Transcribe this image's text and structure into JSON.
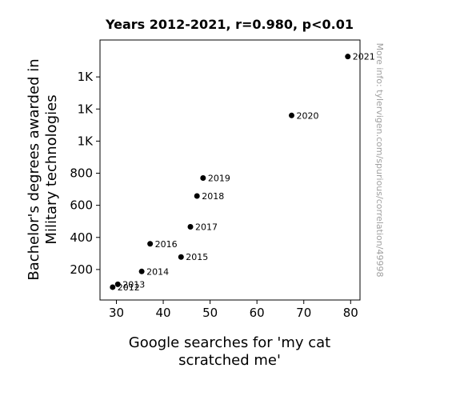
{
  "chart_data": {
    "type": "scatter",
    "title": "Years 2012-2021, r=0.980, p<0.01",
    "xlabel_lines": [
      "Google searches for 'my cat",
      "scratched me'"
    ],
    "ylabel_lines": [
      "Bachelor's degrees awarded in",
      "Military technologies"
    ],
    "xlim": [
      26.5,
      82
    ],
    "ylim": [
      10,
      1630
    ],
    "x_ticks": [
      30,
      40,
      50,
      60,
      70,
      80
    ],
    "y_ticks": [
      {
        "value": 200,
        "label": "200"
      },
      {
        "value": 400,
        "label": "400"
      },
      {
        "value": 600,
        "label": "600"
      },
      {
        "value": 800,
        "label": "800"
      },
      {
        "value": 1000,
        "label": "1K"
      },
      {
        "value": 1200,
        "label": "1K"
      },
      {
        "value": 1400,
        "label": "1K"
      }
    ],
    "points": [
      {
        "label": "2012",
        "x": 29.2,
        "y": 90
      },
      {
        "label": "2013",
        "x": 30.3,
        "y": 108
      },
      {
        "label": "2014",
        "x": 35.4,
        "y": 188
      },
      {
        "label": "2015",
        "x": 43.8,
        "y": 278
      },
      {
        "label": "2016",
        "x": 37.2,
        "y": 360
      },
      {
        "label": "2017",
        "x": 45.8,
        "y": 466
      },
      {
        "label": "2018",
        "x": 47.2,
        "y": 658
      },
      {
        "label": "2019",
        "x": 48.5,
        "y": 770
      },
      {
        "label": "2020",
        "x": 67.4,
        "y": 1160
      },
      {
        "label": "2021",
        "x": 79.4,
        "y": 1527
      }
    ],
    "grid": false,
    "marker_color": "#000000"
  },
  "watermark": "More info: tylervigen.com/spurious/correlation/49998"
}
